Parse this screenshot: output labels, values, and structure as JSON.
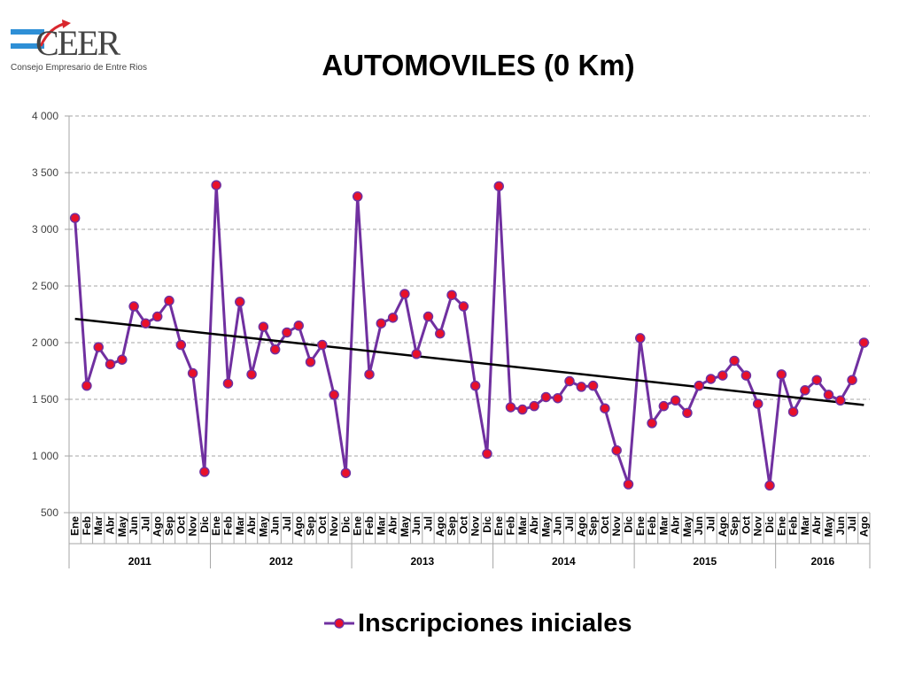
{
  "logo": {
    "text": "CEER",
    "subtitle": "Consejo Empresario de Entre Rios",
    "colors": {
      "blue": "#2e8fd6",
      "red": "#d9272e",
      "gray": "#444444"
    }
  },
  "chart_data": {
    "type": "line",
    "title": "AUTOMOVILES (0 Km)",
    "xlabel": "",
    "ylabel": "",
    "ylim": [
      500,
      4000
    ],
    "yticks": [
      500,
      1000,
      1500,
      2000,
      2500,
      3000,
      3500,
      4000
    ],
    "ytick_labels": [
      "500",
      "1 000",
      "1 500",
      "2 000",
      "2 500",
      "3 000",
      "3 500",
      "4 000"
    ],
    "grid": true,
    "legend_position": "bottom",
    "years": [
      {
        "label": "2011",
        "months": [
          "Ene",
          "Feb",
          "Mar",
          "Abr",
          "May",
          "Jun",
          "Jul",
          "Ago",
          "Sep",
          "Oct",
          "Nov",
          "Dic"
        ]
      },
      {
        "label": "2012",
        "months": [
          "Ene",
          "Feb",
          "Mar",
          "Abr",
          "May",
          "Jun",
          "Jul",
          "Ago",
          "Sep",
          "Oct",
          "Nov",
          "Dic"
        ]
      },
      {
        "label": "2013",
        "months": [
          "Ene",
          "Feb",
          "Mar",
          "Abr",
          "May",
          "Jun",
          "Jul",
          "Ago",
          "Sep",
          "Oct",
          "Nov",
          "Dic"
        ]
      },
      {
        "label": "2014",
        "months": [
          "Ene",
          "Feb",
          "Mar",
          "Abr",
          "May",
          "Jun",
          "Jul",
          "Ago",
          "Sep",
          "Oct",
          "Nov",
          "Dic"
        ]
      },
      {
        "label": "2015",
        "months": [
          "Ene",
          "Feb",
          "Mar",
          "Abr",
          "May",
          "Jun",
          "Jul",
          "Ago",
          "Sep",
          "Oct",
          "Nov",
          "Dic"
        ]
      },
      {
        "label": "2016",
        "months": [
          "Ene",
          "Feb",
          "Mar",
          "Abr",
          "May",
          "Jun",
          "Jul",
          "Ago"
        ]
      }
    ],
    "series": [
      {
        "name": "Inscripciones iniciales",
        "line_color": "#7030a0",
        "marker_color": "#e8102a",
        "values": [
          3100,
          1620,
          1960,
          1810,
          1850,
          2320,
          2170,
          2230,
          2370,
          1980,
          1730,
          860,
          3390,
          1640,
          2360,
          1720,
          2140,
          1940,
          2090,
          2150,
          1830,
          1980,
          1540,
          850,
          3290,
          1720,
          2170,
          2220,
          2430,
          1900,
          2230,
          2080,
          2420,
          2320,
          1620,
          1020,
          3380,
          1430,
          1410,
          1440,
          1520,
          1510,
          1660,
          1610,
          1620,
          1420,
          1050,
          750,
          2040,
          1290,
          1440,
          1490,
          1380,
          1620,
          1680,
          1710,
          1840,
          1710,
          1460,
          740,
          1720,
          1390,
          1580,
          1670,
          1540,
          1490,
          1670,
          2000
        ]
      }
    ],
    "trendline": {
      "color": "#000000",
      "start_value": 2210,
      "end_value": 1450
    }
  }
}
